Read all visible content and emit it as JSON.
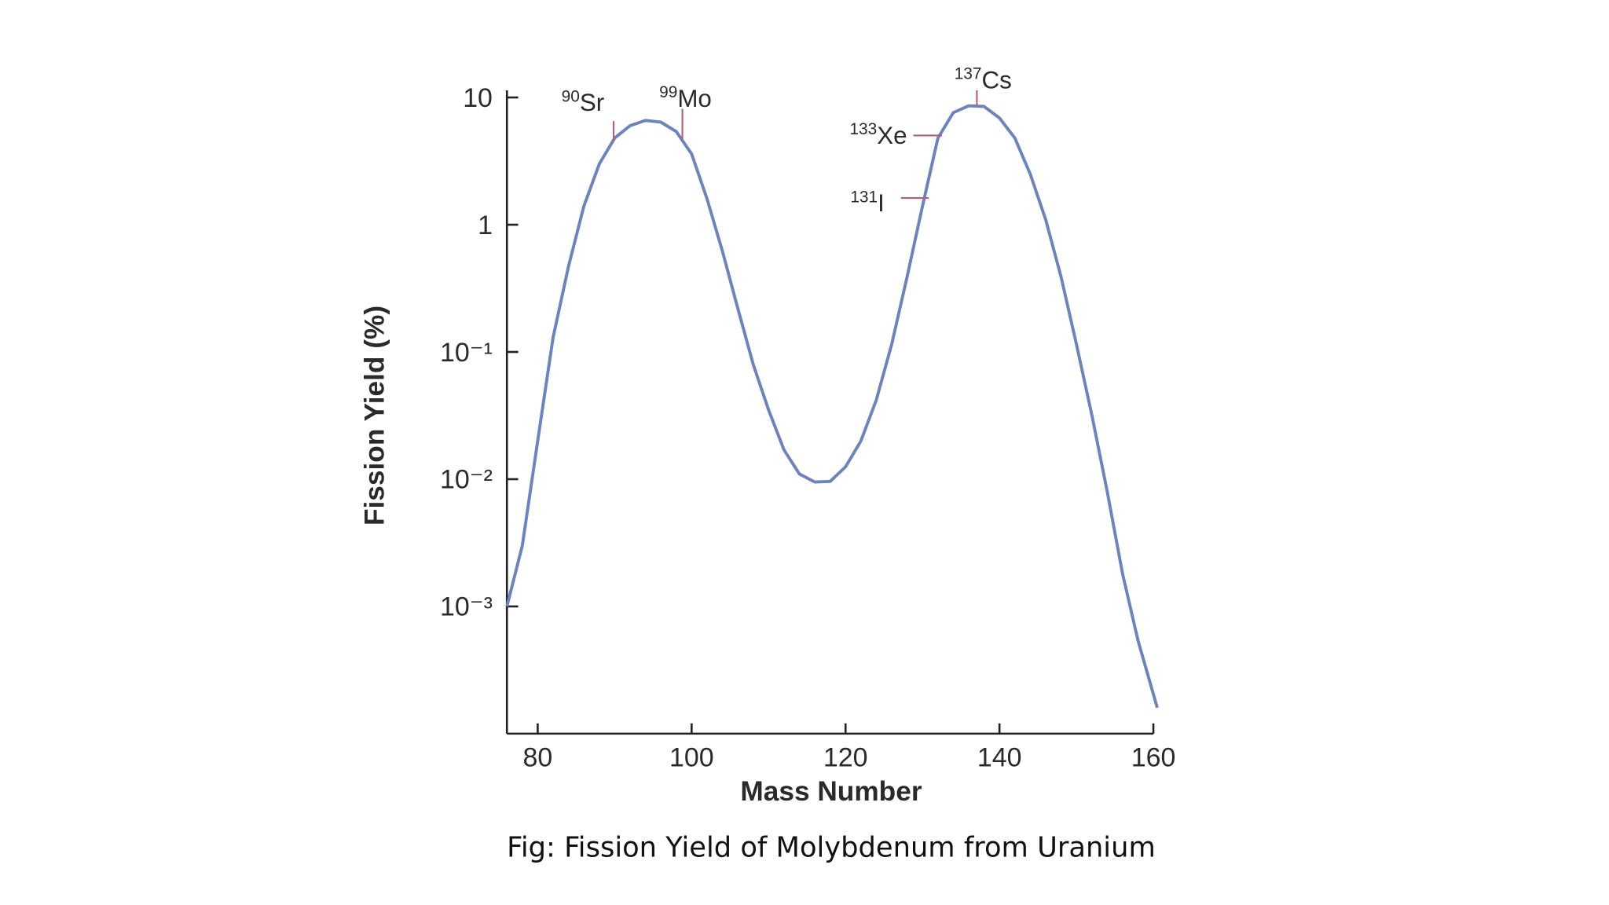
{
  "chart_data": {
    "type": "line",
    "x_label": "Mass Number",
    "y_label": "Fission Yield (%)",
    "caption": "Fig: Fission Yield of Molybdenum from Uranium",
    "log_y": true,
    "xlim": [
      76,
      160
    ],
    "ylim": [
      0.0001,
      10
    ],
    "xticks": [
      80,
      100,
      120,
      140,
      160
    ],
    "yticks": [
      10,
      1,
      {
        "value": 0.1,
        "label": "10⁻¹"
      },
      {
        "value": 0.01,
        "label": "10⁻²"
      },
      {
        "value": 0.001,
        "label": "10⁻³"
      }
    ],
    "series": [
      {
        "name": null,
        "color": "#6b83bf",
        "x": [
          76,
          78,
          80,
          82,
          84,
          86,
          88,
          90,
          92,
          94,
          96,
          98,
          100,
          102,
          104,
          106,
          108,
          110,
          112,
          114,
          116,
          118,
          120,
          122,
          124,
          126,
          128,
          130,
          132,
          134,
          136,
          138,
          140,
          142,
          144,
          146,
          148,
          150,
          152,
          154,
          156,
          158,
          160.5
        ],
        "values": [
          0.001,
          0.003,
          0.02,
          0.13,
          0.47,
          1.4,
          3.0,
          4.8,
          6.0,
          6.6,
          6.4,
          5.4,
          3.6,
          1.6,
          0.62,
          0.22,
          0.08,
          0.035,
          0.017,
          0.011,
          0.0095,
          0.0096,
          0.0125,
          0.02,
          0.042,
          0.115,
          0.39,
          1.4,
          4.8,
          7.6,
          8.6,
          8.5,
          6.9,
          4.8,
          2.5,
          1.1,
          0.39,
          0.115,
          0.032,
          0.008,
          0.0018,
          0.00054,
          0.00016
        ]
      }
    ],
    "annotations": [
      {
        "mass": 90,
        "symbol": "Sr"
      },
      {
        "mass": 99,
        "symbol": "Mo"
      },
      {
        "mass": 137,
        "symbol": "Cs"
      },
      {
        "mass": 133,
        "symbol": "Xe"
      },
      {
        "mass": 131,
        "symbol": "I"
      }
    ]
  }
}
